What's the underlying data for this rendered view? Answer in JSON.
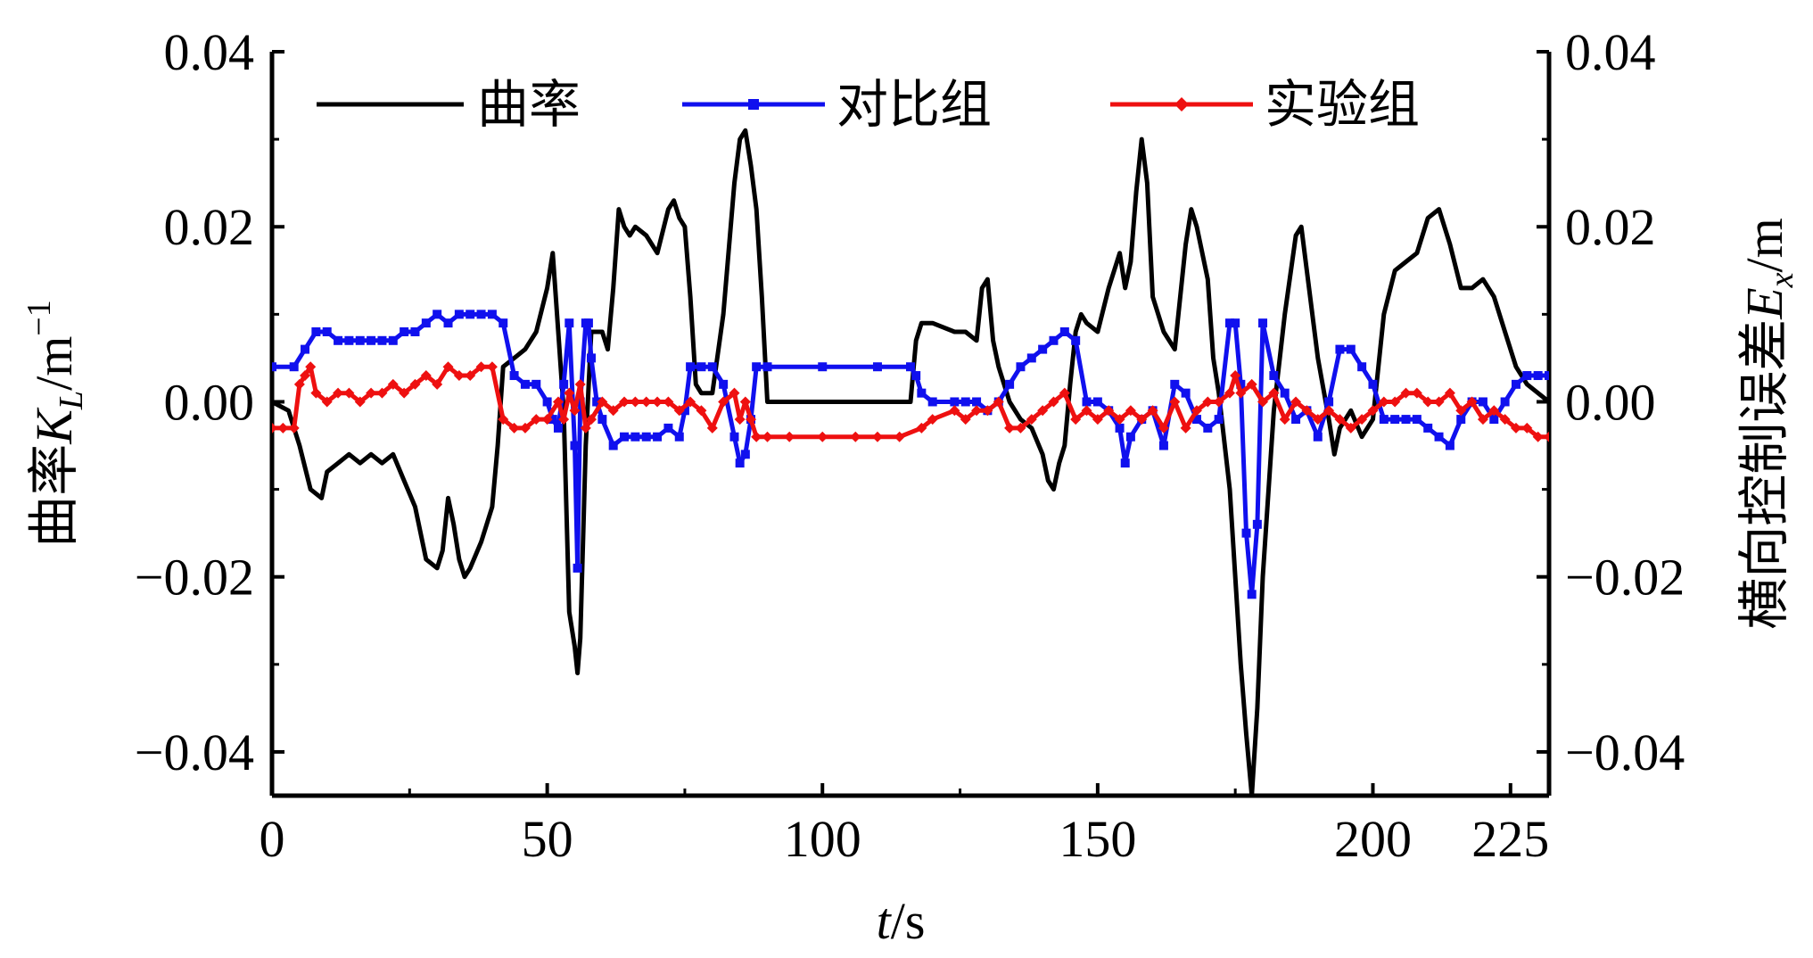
{
  "chart_data": {
    "type": "line",
    "xlabel_var": "t",
    "xlabel_unit": "/s",
    "ylabel_left_text": "曲率",
    "ylabel_left_var": "K",
    "ylabel_left_sub": "L",
    "ylabel_left_unit": "/m",
    "ylabel_left_exp": "−1",
    "ylabel_right_text": "横向控制误差",
    "ylabel_right_var": "E",
    "ylabel_right_sub": "x",
    "ylabel_right_unit": "/m",
    "xlim": [
      0,
      232
    ],
    "ylim_left": [
      -0.045,
      0.04
    ],
    "ylim_right": [
      -0.045,
      0.04
    ],
    "xticks": [
      0,
      50,
      100,
      150,
      200,
      225
    ],
    "xtick_labels": [
      "0",
      "50",
      "100",
      "150",
      "200",
      "225"
    ],
    "yticks": [
      -0.04,
      -0.02,
      0.0,
      0.02,
      0.04
    ],
    "ytick_labels_left": [
      "−0.04",
      "−0.02",
      "0.00",
      "0.02",
      "0.04"
    ],
    "ytick_labels_right": [
      "−0.04",
      "−0.02",
      "0.00",
      "0.02",
      "0.04"
    ],
    "legend_position": "top",
    "series": [
      {
        "name": "曲率",
        "color": "#000000",
        "marker": "none",
        "axis": "left",
        "x": [
          0,
          3,
          5,
          7,
          9,
          10,
          12,
          14,
          16,
          18,
          20,
          22,
          24,
          26,
          28,
          30,
          31,
          32,
          33,
          34,
          35,
          36,
          38,
          40,
          41,
          42,
          44,
          46,
          48,
          50,
          51,
          52,
          53,
          54,
          55,
          55.5,
          56,
          57,
          58,
          60,
          61,
          62,
          63,
          64,
          65,
          66,
          68,
          70,
          72,
          73,
          74,
          75,
          76,
          77,
          78,
          80,
          82,
          84,
          85,
          86,
          87,
          88,
          89,
          90,
          92,
          100,
          110,
          116,
          117,
          118,
          120,
          124,
          126,
          128,
          129,
          130,
          131,
          132,
          133,
          134,
          136,
          138,
          140,
          141,
          142,
          143,
          144,
          145,
          146,
          147,
          148,
          150,
          152,
          154,
          155,
          156,
          157,
          158,
          159,
          160,
          162,
          164,
          166,
          167,
          168,
          170,
          171,
          172,
          174,
          176,
          177,
          178,
          179,
          180,
          182,
          184,
          186,
          187,
          188,
          190,
          192,
          193,
          194,
          196,
          198,
          200,
          202,
          204,
          206,
          208,
          210,
          212,
          214,
          216,
          218,
          220,
          222,
          224,
          226,
          228,
          230,
          232
        ],
        "y": [
          0.0,
          -0.001,
          -0.005,
          -0.01,
          -0.011,
          -0.008,
          -0.007,
          -0.006,
          -0.007,
          -0.006,
          -0.007,
          -0.006,
          -0.009,
          -0.012,
          -0.018,
          -0.019,
          -0.017,
          -0.011,
          -0.014,
          -0.018,
          -0.02,
          -0.019,
          -0.016,
          -0.012,
          -0.005,
          0.004,
          0.005,
          0.006,
          0.008,
          0.013,
          0.017,
          0.008,
          -0.001,
          -0.024,
          -0.028,
          -0.031,
          -0.027,
          -0.005,
          0.008,
          0.008,
          0.006,
          0.013,
          0.022,
          0.02,
          0.019,
          0.02,
          0.019,
          0.017,
          0.022,
          0.023,
          0.021,
          0.02,
          0.012,
          0.002,
          0.001,
          0.001,
          0.01,
          0.025,
          0.03,
          0.031,
          0.027,
          0.022,
          0.012,
          0.0,
          0.0,
          0.0,
          0.0,
          0.0,
          0.007,
          0.009,
          0.009,
          0.008,
          0.008,
          0.007,
          0.013,
          0.014,
          0.007,
          0.004,
          0.002,
          0.0,
          -0.002,
          -0.003,
          -0.006,
          -0.009,
          -0.01,
          -0.007,
          -0.005,
          0.002,
          0.008,
          0.01,
          0.009,
          0.008,
          0.013,
          0.017,
          0.013,
          0.016,
          0.024,
          0.03,
          0.025,
          0.012,
          0.008,
          0.006,
          0.018,
          0.022,
          0.02,
          0.014,
          0.005,
          0.001,
          -0.01,
          -0.03,
          -0.038,
          -0.045,
          -0.035,
          -0.02,
          -0.001,
          0.01,
          0.019,
          0.02,
          0.015,
          0.005,
          -0.002,
          -0.006,
          -0.003,
          -0.001,
          -0.004,
          -0.002,
          0.01,
          0.015,
          0.016,
          0.017,
          0.021,
          0.022,
          0.018,
          0.013,
          0.013,
          0.014,
          0.012,
          0.008,
          0.004,
          0.002,
          0.001,
          0.0
        ]
      },
      {
        "name": "对比组",
        "color": "#1010ee",
        "marker": "square",
        "axis": "right",
        "x": [
          0,
          4,
          6,
          8,
          10,
          12,
          14,
          16,
          18,
          20,
          22,
          24,
          26,
          28,
          30,
          32,
          34,
          36,
          38,
          40,
          42,
          44,
          46,
          48,
          50,
          51,
          52,
          53,
          54,
          55,
          55.5,
          56,
          57,
          57.5,
          58,
          59,
          60,
          62,
          64,
          66,
          68,
          70,
          72,
          74,
          75,
          76,
          78,
          80,
          82,
          84,
          85,
          86,
          87,
          88,
          90,
          100,
          110,
          116,
          117,
          118,
          120,
          124,
          126,
          128,
          130,
          132,
          134,
          136,
          138,
          140,
          142,
          144,
          146,
          148,
          150,
          152,
          154,
          155,
          156,
          158,
          160,
          162,
          164,
          166,
          168,
          170,
          172,
          174,
          175,
          176,
          177,
          178,
          179,
          180,
          182,
          184,
          186,
          188,
          190,
          192,
          194,
          196,
          198,
          200,
          202,
          204,
          206,
          208,
          210,
          212,
          214,
          216,
          218,
          220,
          222,
          224,
          226,
          228,
          230,
          232
        ],
        "y": [
          0.004,
          0.004,
          0.006,
          0.008,
          0.008,
          0.007,
          0.007,
          0.007,
          0.007,
          0.007,
          0.007,
          0.008,
          0.008,
          0.009,
          0.01,
          0.009,
          0.01,
          0.01,
          0.01,
          0.01,
          0.009,
          0.003,
          0.002,
          0.002,
          0.0,
          -0.002,
          -0.003,
          0.002,
          0.009,
          -0.005,
          -0.019,
          0.0,
          0.009,
          0.009,
          0.005,
          0.0,
          -0.002,
          -0.005,
          -0.004,
          -0.004,
          -0.004,
          -0.004,
          -0.003,
          -0.004,
          -0.001,
          0.004,
          0.004,
          0.004,
          0.002,
          -0.004,
          -0.007,
          -0.006,
          -0.002,
          0.004,
          0.004,
          0.004,
          0.004,
          0.004,
          0.003,
          0.001,
          0.0,
          0.0,
          0.0,
          0.0,
          -0.001,
          0.0,
          0.002,
          0.004,
          0.005,
          0.006,
          0.007,
          0.008,
          0.007,
          0.0,
          0.0,
          -0.001,
          -0.003,
          -0.007,
          -0.004,
          -0.002,
          -0.001,
          -0.005,
          0.002,
          0.001,
          -0.002,
          -0.003,
          -0.002,
          0.009,
          0.009,
          0.002,
          -0.015,
          -0.022,
          -0.014,
          0.009,
          0.003,
          0.001,
          -0.002,
          -0.001,
          -0.004,
          0.0,
          0.006,
          0.006,
          0.004,
          0.002,
          -0.002,
          -0.002,
          -0.002,
          -0.002,
          -0.003,
          -0.004,
          -0.005,
          -0.002,
          0.0,
          0.0,
          -0.002,
          0.0,
          0.002,
          0.003,
          0.003,
          0.003
        ]
      },
      {
        "name": "实验组",
        "color": "#ee1010",
        "marker": "diamond",
        "axis": "right",
        "x": [
          0,
          2,
          4,
          5,
          6,
          7,
          8,
          10,
          12,
          14,
          16,
          18,
          20,
          22,
          24,
          26,
          28,
          30,
          32,
          34,
          36,
          38,
          40,
          42,
          44,
          46,
          48,
          50,
          52,
          53,
          54,
          55,
          56,
          57,
          58,
          60,
          62,
          64,
          66,
          68,
          70,
          72,
          74,
          76,
          78,
          80,
          82,
          84,
          85,
          86,
          87,
          88,
          90,
          94,
          100,
          106,
          110,
          114,
          118,
          120,
          124,
          126,
          128,
          130,
          132,
          134,
          136,
          138,
          140,
          142,
          144,
          146,
          148,
          150,
          152,
          154,
          156,
          158,
          160,
          162,
          164,
          166,
          168,
          170,
          172,
          174,
          175,
          176,
          178,
          180,
          182,
          184,
          186,
          188,
          190,
          192,
          194,
          196,
          198,
          200,
          202,
          204,
          206,
          208,
          210,
          212,
          214,
          216,
          218,
          220,
          222,
          224,
          226,
          228,
          230,
          232
        ],
        "y": [
          -0.003,
          -0.003,
          -0.003,
          0.002,
          0.003,
          0.004,
          0.001,
          0.0,
          0.001,
          0.001,
          0.0,
          0.001,
          0.001,
          0.002,
          0.001,
          0.002,
          0.003,
          0.002,
          0.004,
          0.003,
          0.003,
          0.004,
          0.004,
          -0.002,
          -0.003,
          -0.003,
          -0.002,
          -0.002,
          0.0,
          -0.002,
          0.001,
          -0.001,
          0.002,
          -0.003,
          -0.002,
          0.0,
          -0.001,
          0.0,
          0.0,
          0.0,
          0.0,
          0.0,
          -0.001,
          0.0,
          -0.001,
          -0.003,
          0.0,
          0.001,
          -0.002,
          0.0,
          -0.002,
          -0.004,
          -0.004,
          -0.004,
          -0.004,
          -0.004,
          -0.004,
          -0.004,
          -0.003,
          -0.002,
          -0.001,
          -0.002,
          -0.001,
          -0.001,
          0.0,
          -0.003,
          -0.003,
          -0.002,
          -0.001,
          0.0,
          0.001,
          -0.002,
          -0.001,
          -0.002,
          -0.001,
          -0.002,
          -0.001,
          -0.002,
          -0.001,
          -0.003,
          0.0,
          -0.003,
          -0.001,
          0.0,
          0.0,
          0.001,
          0.003,
          0.001,
          0.002,
          0.0,
          0.001,
          -0.002,
          0.0,
          -0.001,
          -0.002,
          -0.001,
          -0.002,
          -0.003,
          -0.002,
          -0.001,
          0.0,
          0.0,
          0.001,
          0.001,
          0.0,
          0.0,
          0.001,
          -0.001,
          0.0,
          -0.002,
          -0.001,
          -0.002,
          -0.003,
          -0.003,
          -0.004,
          -0.004
        ]
      }
    ]
  }
}
